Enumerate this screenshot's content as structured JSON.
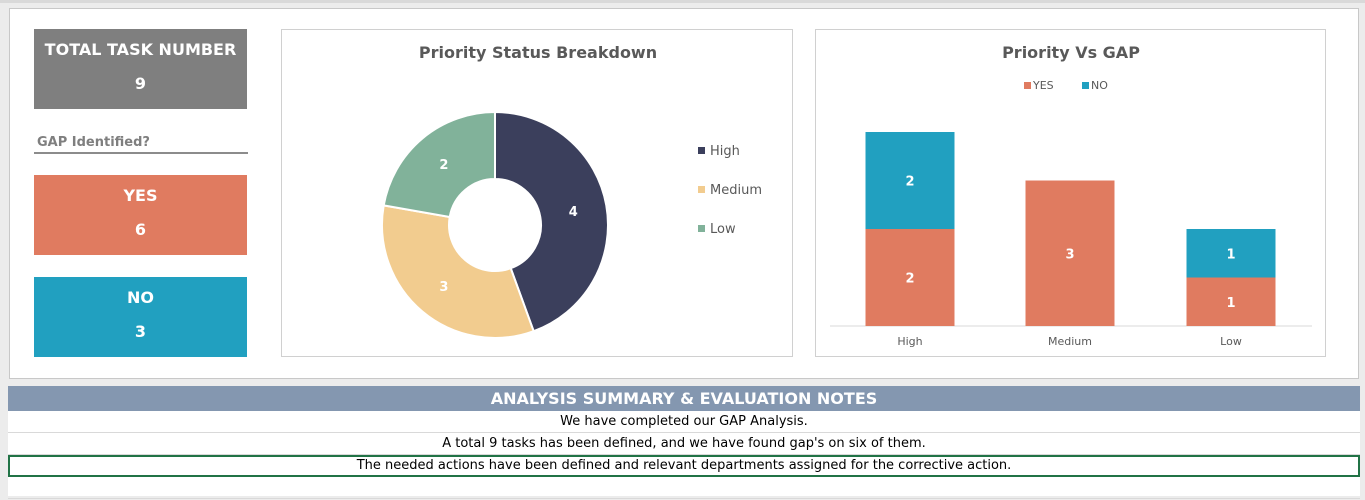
{
  "kpis": {
    "total": {
      "title": "TOTAL TASK NUMBER",
      "value": "9",
      "color": "#7f7f7f"
    },
    "gap_label": "GAP Identified?",
    "yes": {
      "title": "YES",
      "value": "6",
      "color": "#e07b60"
    },
    "no": {
      "title": "NO",
      "value": "3",
      "color": "#21a0c0"
    }
  },
  "summary": {
    "title": "ANALYSIS SUMMARY & EVALUATION NOTES",
    "notes": [
      "We have completed our GAP Analysis.",
      "A total 9 tasks has been defined, and we have found gap's on six of them.",
      "The needed actions have been defined and relevant departments assigned for the corrective action.",
      ""
    ]
  },
  "chart_data": [
    {
      "type": "pie",
      "title": "Priority Status Breakdown",
      "categories": [
        "High",
        "Medium",
        "Low"
      ],
      "values": [
        4,
        3,
        2
      ],
      "colors": [
        "#3b3f5c",
        "#f2cc8f",
        "#81b29a"
      ],
      "donut": true,
      "legend": "right"
    },
    {
      "type": "bar",
      "title": "Priority Vs GAP",
      "stacked": true,
      "categories": [
        "High",
        "Medium",
        "Low"
      ],
      "series": [
        {
          "name": "YES",
          "values": [
            2,
            3,
            1
          ],
          "color": "#e07b60"
        },
        {
          "name": "NO",
          "values": [
            2,
            0,
            1
          ],
          "color": "#21a0c0"
        }
      ],
      "legend": "top",
      "grid": false
    }
  ]
}
